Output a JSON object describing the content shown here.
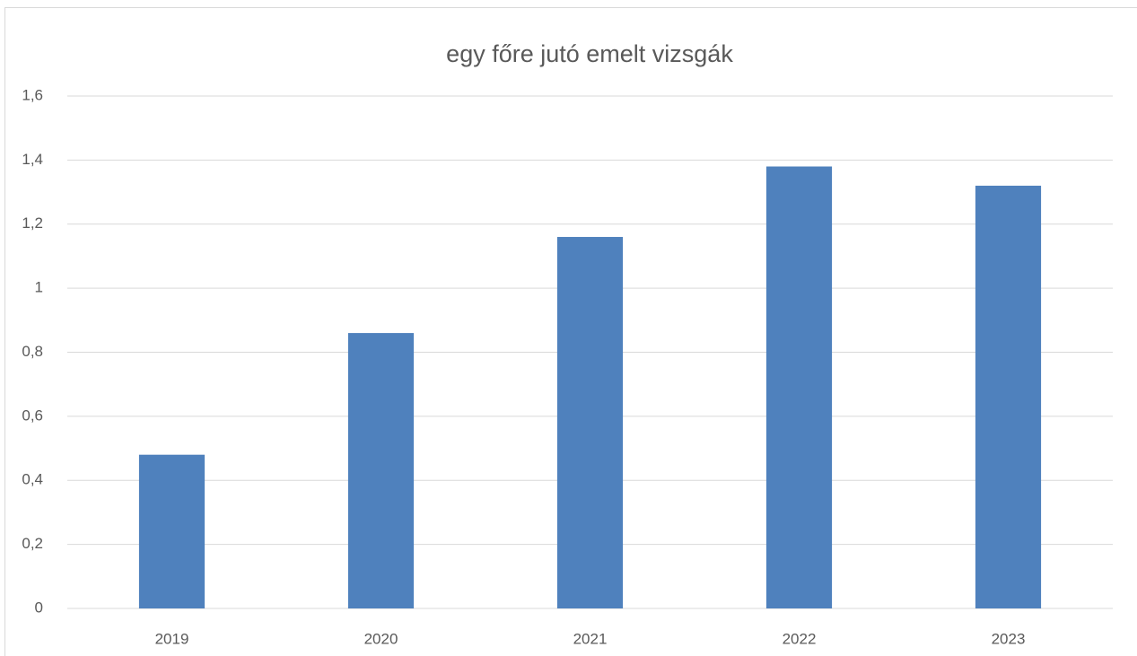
{
  "chart_data": {
    "type": "bar",
    "title": "egy főre jutó emelt vizsgák",
    "categories": [
      "2019",
      "2020",
      "2021",
      "2022",
      "2023"
    ],
    "values": [
      0.48,
      0.86,
      1.16,
      1.38,
      1.32
    ],
    "color": "#4f81bd",
    "ylim": [
      0,
      1.6
    ],
    "yticks": [
      0,
      {
        "value": 0.2,
        "label": "0,2"
      },
      {
        "value": 0.4,
        "label": "0,4"
      },
      {
        "value": 0.6,
        "label": "0,6"
      },
      {
        "value": 0.8,
        "label": "0,8"
      },
      1,
      {
        "value": 1.2,
        "label": "1,2"
      },
      {
        "value": 1.4,
        "label": "1,4"
      },
      {
        "value": 1.6,
        "label": "1,6"
      }
    ],
    "grid": true
  }
}
